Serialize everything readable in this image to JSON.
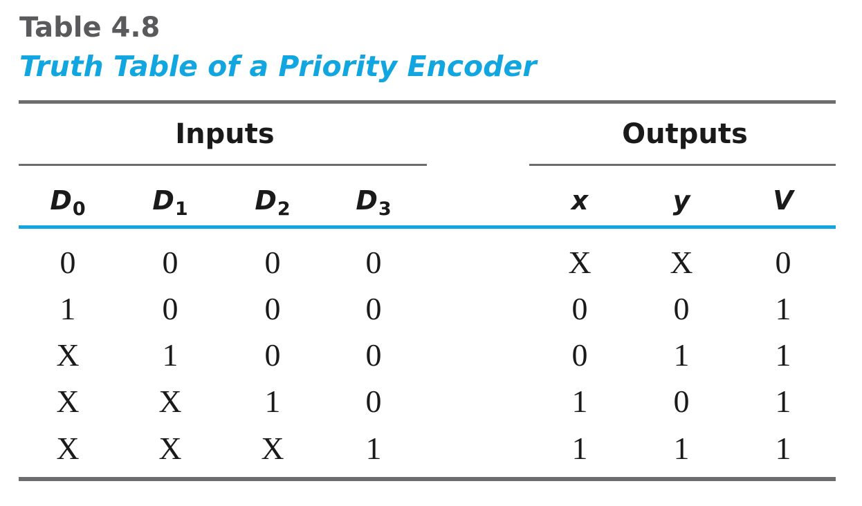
{
  "table_number": "Table 4.8",
  "table_title": "Truth Table of a Priority Encoder",
  "groups": {
    "inputs": "Inputs",
    "outputs": "Outputs"
  },
  "columns": [
    {
      "letter": "D",
      "sub": "0"
    },
    {
      "letter": "D",
      "sub": "1"
    },
    {
      "letter": "D",
      "sub": "2"
    },
    {
      "letter": "D",
      "sub": "3"
    },
    {
      "letter": "x",
      "sub": ""
    },
    {
      "letter": "y",
      "sub": ""
    },
    {
      "letter": "V",
      "sub": ""
    }
  ],
  "rows": [
    [
      "0",
      "0",
      "0",
      "0",
      "X",
      "X",
      "0"
    ],
    [
      "1",
      "0",
      "0",
      "0",
      "0",
      "0",
      "1"
    ],
    [
      "X",
      "1",
      "0",
      "0",
      "0",
      "1",
      "1"
    ],
    [
      "X",
      "X",
      "1",
      "0",
      "1",
      "0",
      "1"
    ],
    [
      "X",
      "X",
      "X",
      "1",
      "1",
      "1",
      "1"
    ]
  ],
  "colors": {
    "title_blue": "#12a6e0",
    "number_gray": "#5a5a5c",
    "rule_gray": "#6d6d6f",
    "text": "#1a1a1a"
  }
}
